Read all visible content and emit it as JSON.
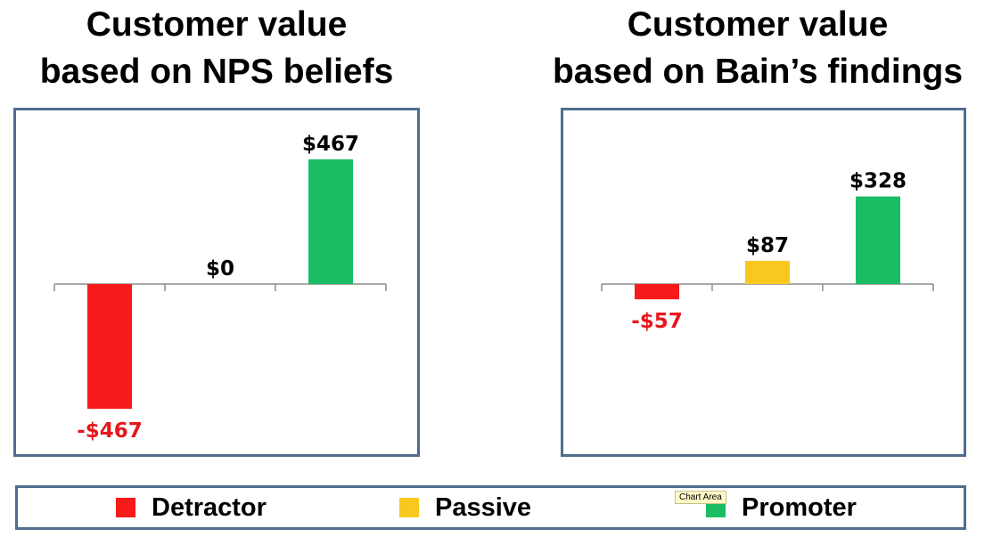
{
  "titles": {
    "left": [
      "Customer value",
      "based on NPS beliefs"
    ],
    "right": [
      "Customer value",
      "based on Bain’s findings"
    ]
  },
  "colors": {
    "detractor": "#f71a1a",
    "passive": "#f8c81f",
    "promoter": "#1abd63",
    "panel_border": "#4f6d8f",
    "axis": "#8c8c8c",
    "negative_label": "#e8161b"
  },
  "chart_data": [
    {
      "type": "bar",
      "title": "Customer value based on NPS beliefs",
      "categories": [
        "Detractor",
        "Passive",
        "Promoter"
      ],
      "values": [
        -467,
        0,
        467
      ],
      "labels": [
        "-$467",
        "$0",
        "$467"
      ],
      "ylim": [
        -500,
        520
      ],
      "grid": false
    },
    {
      "type": "bar",
      "title": "Customer value based on Bain’s findings",
      "categories": [
        "Detractor",
        "Passive",
        "Promoter"
      ],
      "values": [
        -57,
        87,
        328
      ],
      "labels": [
        "-$57",
        "$87",
        "$328"
      ],
      "ylim": [
        -500,
        520
      ],
      "grid": false
    }
  ],
  "legend": {
    "items": [
      {
        "label": "Detractor",
        "color": "#f71a1a"
      },
      {
        "label": "Passive",
        "color": "#f8c81f"
      },
      {
        "label": "Promoter",
        "color": "#1abd63"
      }
    ]
  },
  "tooltip": {
    "text": "Chart Area"
  }
}
